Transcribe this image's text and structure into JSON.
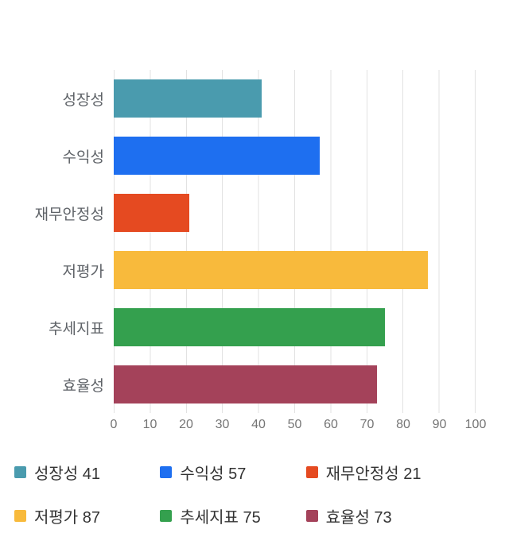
{
  "chart_data": {
    "type": "bar",
    "orientation": "horizontal",
    "title": "",
    "categories": [
      "성장성",
      "수익성",
      "재무안정성",
      "저평가",
      "추세지표",
      "효율성"
    ],
    "values": [
      41,
      57,
      21,
      87,
      75,
      73
    ],
    "colors": [
      "#4A9BAE",
      "#1E6FF0",
      "#E54A21",
      "#F8BA3C",
      "#34A04E",
      "#A4425A"
    ],
    "xlabel": "",
    "ylabel": "",
    "xlim": [
      0,
      100
    ],
    "xticks": [
      0,
      10,
      20,
      30,
      40,
      50,
      60,
      70,
      80,
      90,
      100
    ],
    "grid": true,
    "legend_position": "bottom",
    "legend": [
      {
        "label": "성장성 41",
        "color": "#4A9BAE"
      },
      {
        "label": "수익성 57",
        "color": "#1E6FF0"
      },
      {
        "label": "재무안정성 21",
        "color": "#E54A21"
      },
      {
        "label": "저평가 87",
        "color": "#F8BA3C"
      },
      {
        "label": "추세지표 75",
        "color": "#34A04E"
      },
      {
        "label": "효율성 73",
        "color": "#A4425A"
      }
    ]
  }
}
